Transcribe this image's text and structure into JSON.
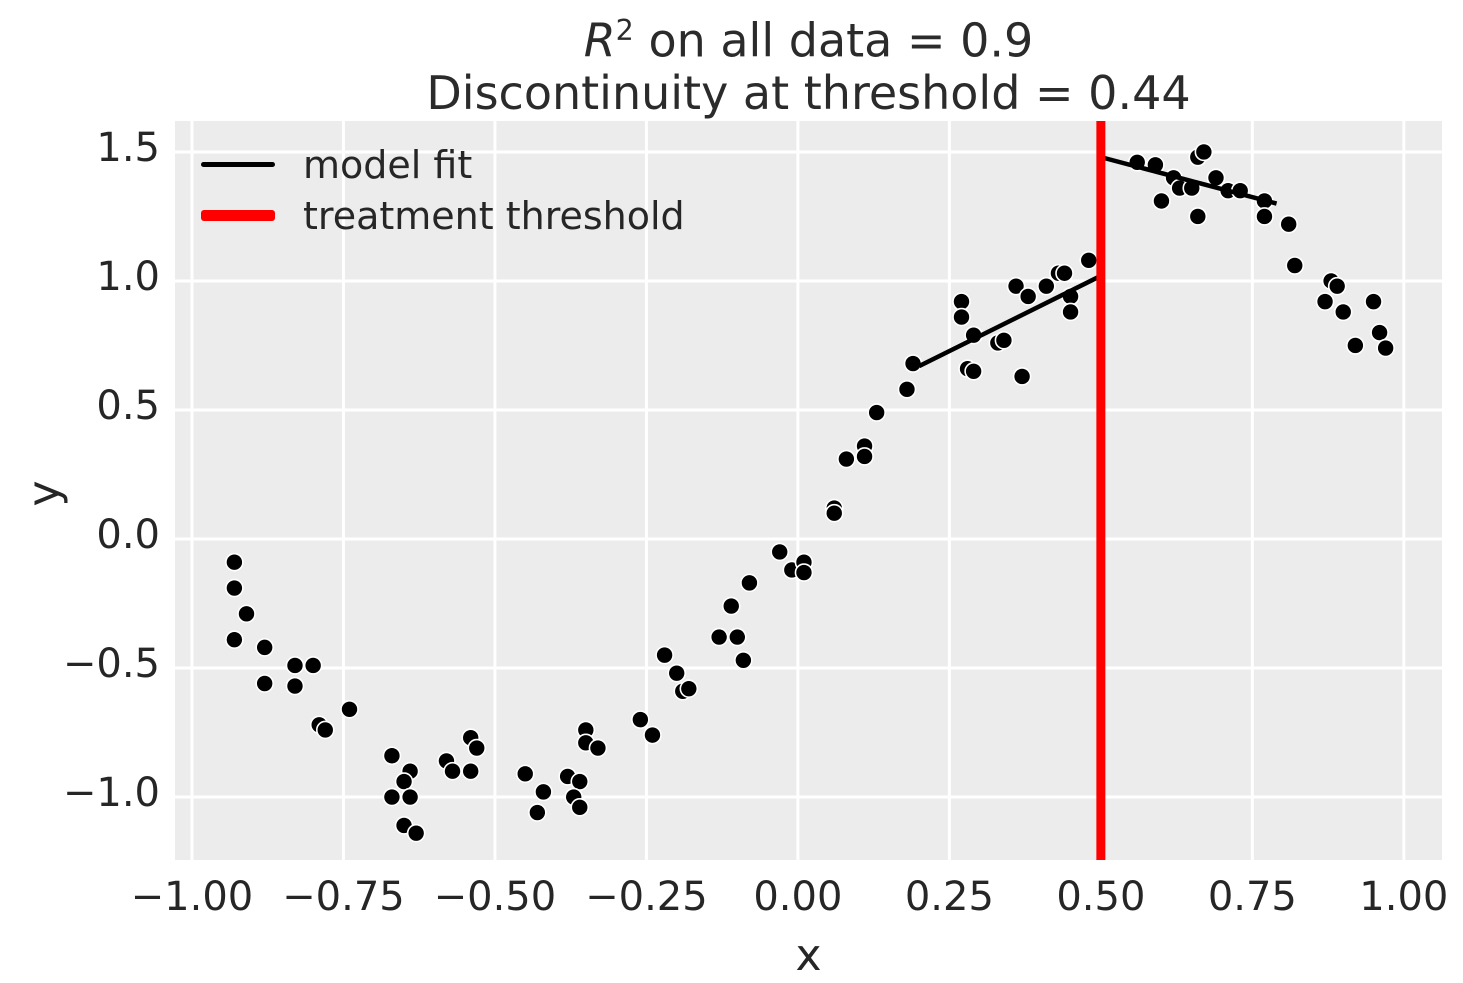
{
  "title": {
    "math_var": "R",
    "math_sup": "2",
    "line1_rest": " on all data = 0.9",
    "line2": "Discontinuity at threshold = 0.44"
  },
  "axes": {
    "xlabel": "x",
    "ylabel": "y",
    "x_ticks": [
      {
        "v": -1.0,
        "label": "−1.00"
      },
      {
        "v": -0.75,
        "label": "−0.75"
      },
      {
        "v": -0.5,
        "label": "−0.50"
      },
      {
        "v": -0.25,
        "label": "−0.25"
      },
      {
        "v": 0.0,
        "label": "0.00"
      },
      {
        "v": 0.25,
        "label": "0.25"
      },
      {
        "v": 0.5,
        "label": "0.50"
      },
      {
        "v": 0.75,
        "label": "0.75"
      },
      {
        "v": 1.0,
        "label": "1.00"
      }
    ],
    "y_ticks": [
      {
        "v": 1.5,
        "label": "1.5"
      },
      {
        "v": 1.0,
        "label": "1.0"
      },
      {
        "v": 0.5,
        "label": "0.5"
      },
      {
        "v": 0.0,
        "label": "0.0"
      },
      {
        "v": -0.5,
        "label": "−0.5"
      },
      {
        "v": -1.0,
        "label": "−1.0"
      }
    ]
  },
  "legend": {
    "items": [
      {
        "label": "model fit",
        "color": "#000000",
        "thickness": 5
      },
      {
        "label": "treatment threshold",
        "color": "#ff0000",
        "thickness": 11
      }
    ]
  },
  "colors": {
    "page_bg": "#ffffff",
    "plot_bg": "#ececec",
    "grid": "#ffffff",
    "text": "#262626",
    "point_fill": "#000000",
    "point_edge": "#ffffff",
    "fit_line": "#000000",
    "threshold_line": "#ff0000"
  },
  "chart_data": {
    "type": "scatter",
    "title": "R^2 on all data = 0.9\nDiscontinuity at threshold = 0.44",
    "xlabel": "x",
    "ylabel": "y",
    "xlim": [
      -1.028,
      1.063
    ],
    "ylim": [
      -1.244,
      1.62
    ],
    "grid": true,
    "legend_position": "upper left",
    "r_squared": 0.9,
    "discontinuity": 0.44,
    "threshold_x": 0.5,
    "points": [
      [
        -0.93,
        -0.09
      ],
      [
        -0.93,
        -0.19
      ],
      [
        -0.91,
        -0.29
      ],
      [
        -0.93,
        -0.39
      ],
      [
        -0.88,
        -0.42
      ],
      [
        -0.83,
        -0.49
      ],
      [
        -0.8,
        -0.49
      ],
      [
        -0.88,
        -0.56
      ],
      [
        -0.83,
        -0.57
      ],
      [
        -0.74,
        -0.66
      ],
      [
        -0.79,
        -0.72
      ],
      [
        -0.78,
        -0.74
      ],
      [
        -0.67,
        -0.84
      ],
      [
        -0.64,
        -0.9
      ],
      [
        -0.65,
        -0.94
      ],
      [
        -0.67,
        -1.0
      ],
      [
        -0.64,
        -1.0
      ],
      [
        -0.65,
        -1.11
      ],
      [
        -0.63,
        -1.14
      ],
      [
        -0.58,
        -0.86
      ],
      [
        -0.57,
        -0.9
      ],
      [
        -0.54,
        -0.9
      ],
      [
        -0.54,
        -0.77
      ],
      [
        -0.53,
        -0.81
      ],
      [
        -0.45,
        -0.91
      ],
      [
        -0.42,
        -0.98
      ],
      [
        -0.43,
        -1.06
      ],
      [
        -0.38,
        -0.92
      ],
      [
        -0.36,
        -0.94
      ],
      [
        -0.37,
        -1.0
      ],
      [
        -0.36,
        -1.04
      ],
      [
        -0.35,
        -0.74
      ],
      [
        -0.35,
        -0.79
      ],
      [
        -0.33,
        -0.81
      ],
      [
        -0.26,
        -0.7
      ],
      [
        -0.24,
        -0.76
      ],
      [
        -0.22,
        -0.45
      ],
      [
        -0.2,
        -0.52
      ],
      [
        -0.19,
        -0.59
      ],
      [
        -0.18,
        -0.58
      ],
      [
        -0.13,
        -0.38
      ],
      [
        -0.1,
        -0.38
      ],
      [
        -0.09,
        -0.47
      ],
      [
        -0.11,
        -0.26
      ],
      [
        -0.08,
        -0.17
      ],
      [
        -0.03,
        -0.05
      ],
      [
        -0.01,
        -0.12
      ],
      [
        0.01,
        -0.09
      ],
      [
        0.01,
        -0.13
      ],
      [
        0.06,
        0.12
      ],
      [
        0.06,
        0.1
      ],
      [
        0.08,
        0.31
      ],
      [
        0.11,
        0.36
      ],
      [
        0.11,
        0.32
      ],
      [
        0.13,
        0.49
      ],
      [
        0.18,
        0.58
      ],
      [
        0.19,
        0.68
      ],
      [
        0.27,
        0.92
      ],
      [
        0.27,
        0.86
      ],
      [
        0.28,
        0.66
      ],
      [
        0.29,
        0.65
      ],
      [
        0.29,
        0.79
      ],
      [
        0.33,
        0.76
      ],
      [
        0.34,
        0.77
      ],
      [
        0.36,
        0.98
      ],
      [
        0.37,
        0.63
      ],
      [
        0.38,
        0.94
      ],
      [
        0.41,
        0.98
      ],
      [
        0.43,
        1.03
      ],
      [
        0.44,
        1.03
      ],
      [
        0.45,
        0.94
      ],
      [
        0.45,
        0.88
      ],
      [
        0.48,
        1.08
      ],
      [
        0.56,
        1.46
      ],
      [
        0.59,
        1.45
      ],
      [
        0.6,
        1.31
      ],
      [
        0.62,
        1.4
      ],
      [
        0.63,
        1.36
      ],
      [
        0.65,
        1.36
      ],
      [
        0.66,
        1.48
      ],
      [
        0.67,
        1.5
      ],
      [
        0.66,
        1.25
      ],
      [
        0.69,
        1.4
      ],
      [
        0.71,
        1.35
      ],
      [
        0.73,
        1.35
      ],
      [
        0.77,
        1.31
      ],
      [
        0.77,
        1.25
      ],
      [
        0.81,
        1.22
      ],
      [
        0.82,
        1.06
      ],
      [
        0.88,
        1.0
      ],
      [
        0.89,
        0.98
      ],
      [
        0.87,
        0.92
      ],
      [
        0.9,
        0.88
      ],
      [
        0.95,
        0.92
      ],
      [
        0.92,
        0.75
      ],
      [
        0.96,
        0.8
      ],
      [
        0.97,
        0.74
      ]
    ],
    "model_fit_segments": [
      {
        "x": [
          0.2,
          0.5
        ],
        "y": [
          0.67,
          1.02
        ]
      },
      {
        "x": [
          0.5,
          0.79
        ],
        "y": [
          1.48,
          1.3
        ]
      }
    ]
  }
}
